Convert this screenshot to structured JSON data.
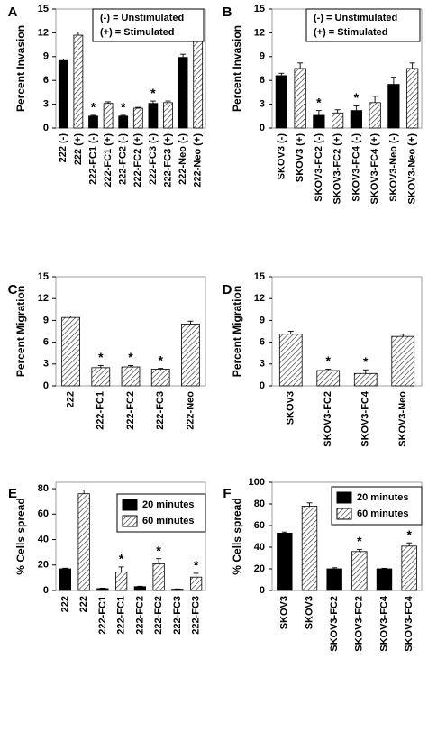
{
  "chart_data": [
    {
      "type": "bar",
      "panel_label": "A",
      "ylabel": "Percent Invasion",
      "ylim": [
        0,
        15
      ],
      "yticks": [
        0,
        3,
        6,
        9,
        12,
        15
      ],
      "legend_text": [
        "(-) = Unstimulated",
        "(+) = Stimulated"
      ],
      "categories": [
        "222 (-)",
        "222 (+)",
        "222-FC1 (-)",
        "222-FC1 (+)",
        "222-FC2 (-)",
        "222-FC2 (+)",
        "222-FC3 (-)",
        "222-FC3 (+)",
        "222-Neo (-)",
        "222-Neo (+)"
      ],
      "values": [
        8.5,
        11.7,
        1.5,
        3.1,
        1.5,
        2.5,
        3.1,
        3.2,
        8.9,
        11.4
      ],
      "errors": [
        0.2,
        0.4,
        0.1,
        0.2,
        0.1,
        0.1,
        0.3,
        0.2,
        0.4,
        0.3
      ],
      "styles": [
        "solid",
        "hatched",
        "solid",
        "hatched",
        "solid",
        "hatched",
        "solid",
        "hatched",
        "solid",
        "hatched"
      ],
      "asterisks": [
        null,
        null,
        "*",
        null,
        "*",
        null,
        "*",
        null,
        null,
        null
      ]
    },
    {
      "type": "bar",
      "panel_label": "B",
      "ylabel": "Percent Invasion",
      "ylim": [
        0,
        15
      ],
      "yticks": [
        0,
        3,
        6,
        9,
        12,
        15
      ],
      "legend_text": [
        "(-) = Unstimulated",
        "(+) = Stimulated"
      ],
      "categories": [
        "SKOV3 (-)",
        "SKOV3 (+)",
        "SKOV3-FC2 (-)",
        "SKOV3-FC2 (+)",
        "SKOV3-FC4 (-)",
        "SKOV3-FC4 (+)",
        "SKOV3-Neo (-)",
        "SKOV3-Neo (+)"
      ],
      "values": [
        6.6,
        7.5,
        1.6,
        1.9,
        2.2,
        3.2,
        5.5,
        7.5
      ],
      "errors": [
        0.3,
        0.7,
        0.6,
        0.4,
        0.6,
        0.8,
        0.9,
        0.7
      ],
      "styles": [
        "solid",
        "hatched",
        "solid",
        "hatched",
        "solid",
        "hatched",
        "solid",
        "hatched"
      ],
      "asterisks": [
        null,
        null,
        "*",
        null,
        "*",
        null,
        null,
        null
      ]
    },
    {
      "type": "bar",
      "panel_label": "C",
      "ylabel": "Percent Migration",
      "ylim": [
        0,
        15
      ],
      "yticks": [
        0,
        3,
        6,
        9,
        12,
        15
      ],
      "categories": [
        "222",
        "222-FC1",
        "222-FC2",
        "222-FC3",
        "222-Neo"
      ],
      "values": [
        9.4,
        2.5,
        2.6,
        2.3,
        8.5
      ],
      "errors": [
        0.2,
        0.3,
        0.2,
        0.1,
        0.4
      ],
      "styles": [
        "hatched",
        "hatched",
        "hatched",
        "hatched",
        "hatched"
      ],
      "asterisks": [
        null,
        "*",
        "*",
        "*",
        null
      ]
    },
    {
      "type": "bar",
      "panel_label": "D",
      "ylabel": "Percent Migration",
      "ylim": [
        0,
        15
      ],
      "yticks": [
        0,
        3,
        6,
        9,
        12,
        15
      ],
      "categories": [
        "SKOV3",
        "SKOV3-FC2",
        "SKOV3-FC4",
        "SKOV3-Neo"
      ],
      "values": [
        7.1,
        2.1,
        1.7,
        6.8
      ],
      "errors": [
        0.4,
        0.2,
        0.5,
        0.3
      ],
      "styles": [
        "hatched",
        "hatched",
        "hatched",
        "hatched"
      ],
      "asterisks": [
        null,
        "*",
        "*",
        null
      ]
    },
    {
      "type": "grouped_bar",
      "panel_label": "E",
      "ylabel": "% Cells spread",
      "ylim": [
        0,
        85
      ],
      "yticks": [
        0,
        20,
        40,
        60,
        80
      ],
      "categories": [
        "222",
        "222-FC1",
        "222-FC2",
        "222-FC3"
      ],
      "series": [
        {
          "name": "20 minutes",
          "style": "solid",
          "values": [
            17,
            1.5,
            3,
            1
          ],
          "errors": [
            0.5,
            0.3,
            0.3,
            0.2
          ]
        },
        {
          "name": "60 minutes",
          "style": "hatched",
          "values": [
            76,
            14.5,
            21,
            10.5
          ],
          "errors": [
            3,
            4,
            4,
            3
          ],
          "asterisks": [
            null,
            "*",
            "*",
            "*"
          ]
        }
      ]
    },
    {
      "type": "grouped_bar",
      "panel_label": "F",
      "ylabel": "% Cells spread",
      "ylim": [
        0,
        100
      ],
      "yticks": [
        0,
        20,
        40,
        60,
        80,
        100
      ],
      "categories": [
        "SKOV3",
        "SKOV3-FC2",
        "SKOV3-FC4"
      ],
      "series": [
        {
          "name": "20 minutes",
          "style": "solid",
          "values": [
            53,
            20,
            20
          ],
          "errors": [
            1,
            1,
            0.5
          ]
        },
        {
          "name": "60 minutes",
          "style": "hatched",
          "values": [
            78,
            36,
            41
          ],
          "errors": [
            3,
            2,
            3
          ],
          "asterisks": [
            null,
            "*",
            "*"
          ]
        }
      ]
    }
  ]
}
